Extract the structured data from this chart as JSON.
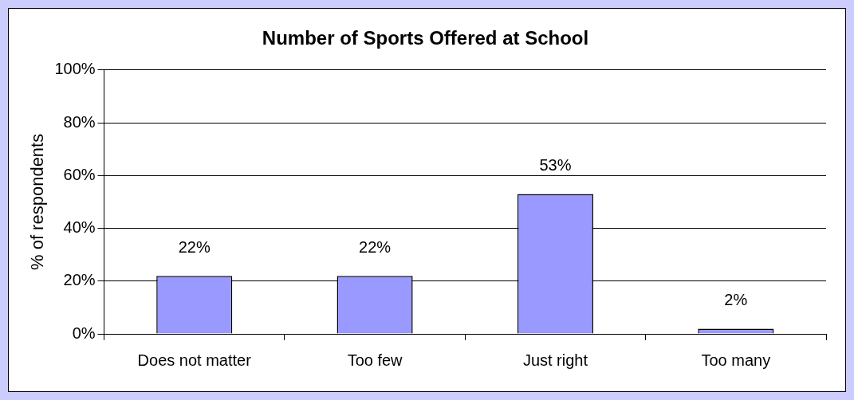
{
  "chart_data": {
    "type": "bar",
    "title": "Number of Sports Offered at School",
    "ylabel": "% of respondents",
    "categories": [
      "Does not matter",
      "Too few",
      "Just right",
      "Too many"
    ],
    "values": [
      22,
      22,
      53,
      2
    ],
    "color": "#9999ff",
    "value_labels": [
      "22%",
      "22%",
      "53%",
      "2%"
    ],
    "ylim": [
      0,
      100
    ],
    "yticks": [
      {
        "value": 0,
        "label": "0%"
      },
      {
        "value": 20,
        "label": "20%"
      },
      {
        "value": 40,
        "label": "40%"
      },
      {
        "value": 60,
        "label": "60%"
      },
      {
        "value": 80,
        "label": "80%"
      },
      {
        "value": 100,
        "label": "100%"
      }
    ],
    "grid": "y",
    "legend": false
  }
}
